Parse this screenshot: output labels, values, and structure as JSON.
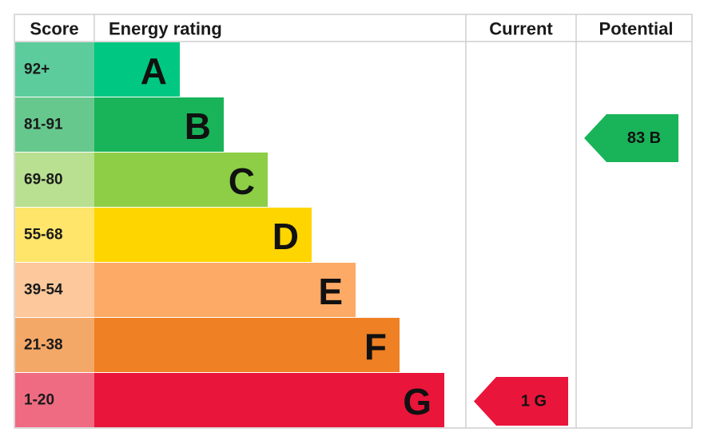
{
  "header": {
    "score": "Score",
    "energy_rating": "Energy rating",
    "current": "Current",
    "potential": "Potential"
  },
  "rows": [
    {
      "score": "92+",
      "letter": "A"
    },
    {
      "score": "81-91",
      "letter": "B"
    },
    {
      "score": "69-80",
      "letter": "C"
    },
    {
      "score": "55-68",
      "letter": "D"
    },
    {
      "score": "39-54",
      "letter": "E"
    },
    {
      "score": "21-38",
      "letter": "F"
    },
    {
      "score": "1-20",
      "letter": "G"
    }
  ],
  "current": {
    "label": "1 G"
  },
  "potential": {
    "label": "83 B"
  }
}
